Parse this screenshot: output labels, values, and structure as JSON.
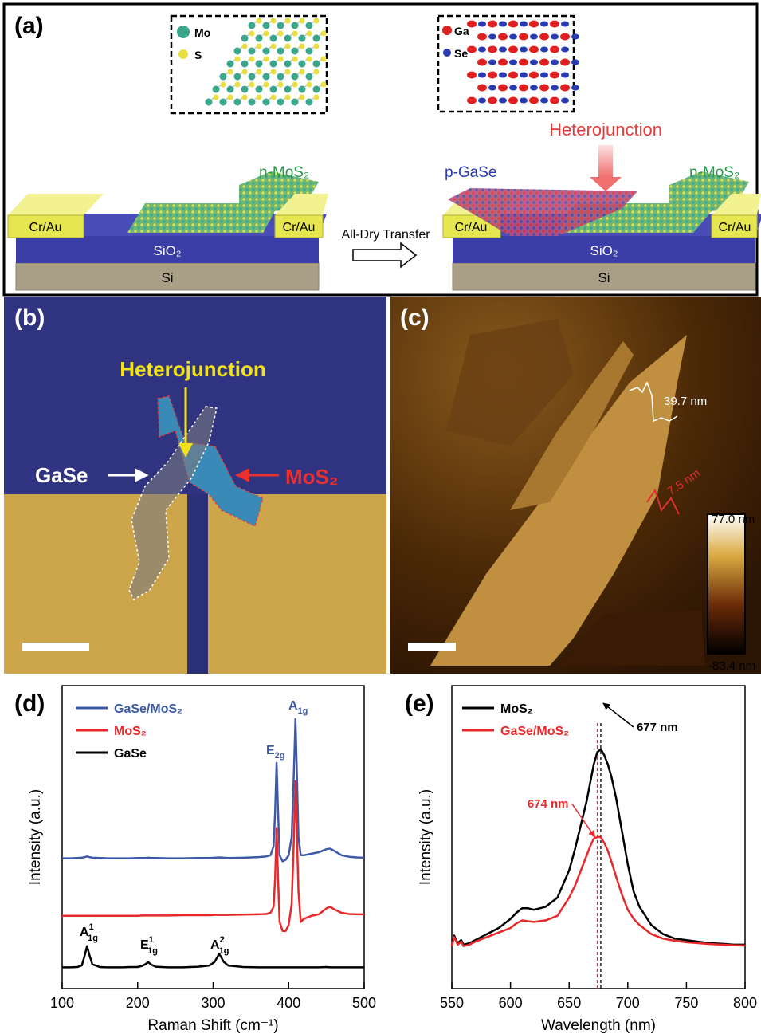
{
  "panel_a": {
    "label": "(a)",
    "inset_left": {
      "mo": "Mo",
      "s": "S"
    },
    "inset_right": {
      "ga": "Ga",
      "se": "Se"
    },
    "left_device": {
      "n_mos2": "n-MoS₂",
      "cr_au_left": "Cr/Au",
      "cr_au_right": "Cr/Au",
      "sio2": "SiO₂",
      "si": "Si"
    },
    "transfer": "All-Dry Transfer",
    "right_device": {
      "p_gase": "p-GaSe",
      "heterojunction": "Heterojunction",
      "n_mos2": "n-MoS₂",
      "cr_au_left": "Cr/Au",
      "cr_au_right": "Cr/Au",
      "sio2": "SiO₂",
      "si": "Si"
    }
  },
  "panel_b": {
    "label": "(b)",
    "heterojunction": "Heterojunction",
    "gase": "GaSe",
    "mos2": "MoS₂"
  },
  "panel_c": {
    "label": "(c)",
    "step_1": "39.7 nm",
    "step_2": "7.5 nm",
    "colorbar_max": "77.0 nm",
    "colorbar_min": "-83.4 nm"
  },
  "chart_data": [
    {
      "type": "line",
      "label": "(d)",
      "x_label": "Raman Shift (cm⁻¹)",
      "y_label": "Intensity (a.u.)",
      "xlim": [
        100,
        500
      ],
      "xticks": [
        100,
        200,
        300,
        400,
        500
      ],
      "ylim": [
        0,
        1
      ],
      "legend": "upper left",
      "x": [
        100,
        110,
        120,
        126,
        130,
        133,
        136,
        140,
        150,
        160,
        170,
        180,
        190,
        200,
        206,
        210,
        214,
        218,
        224,
        240,
        260,
        280,
        295,
        302,
        308,
        314,
        320,
        340,
        360,
        370,
        376,
        380,
        382,
        384,
        386,
        388,
        392,
        396,
        400,
        404,
        407,
        409,
        411,
        413,
        416,
        420,
        430,
        440,
        450,
        455,
        460,
        470,
        480,
        490,
        500
      ],
      "series": [
        {
          "name": "GaSe/MoS₂",
          "color": "#3d5aa8",
          "values": [
            0.43,
            0.43,
            0.431,
            0.432,
            0.434,
            0.436,
            0.434,
            0.432,
            0.431,
            0.43,
            0.43,
            0.43,
            0.43,
            0.431,
            0.431,
            0.431,
            0.432,
            0.431,
            0.431,
            0.43,
            0.43,
            0.431,
            0.431,
            0.432,
            0.433,
            0.432,
            0.431,
            0.432,
            0.434,
            0.436,
            0.44,
            0.47,
            0.58,
            0.745,
            0.58,
            0.44,
            0.42,
            0.425,
            0.44,
            0.5,
            0.72,
            0.89,
            0.7,
            0.5,
            0.44,
            0.44,
            0.445,
            0.45,
            0.46,
            0.462,
            0.455,
            0.44,
            0.435,
            0.433,
            0.432
          ]
        },
        {
          "name": "MoS₂",
          "color": "#e8282a",
          "values": [
            0.24,
            0.24,
            0.24,
            0.24,
            0.24,
            0.24,
            0.24,
            0.24,
            0.24,
            0.24,
            0.24,
            0.24,
            0.24,
            0.24,
            0.241,
            0.241,
            0.241,
            0.241,
            0.241,
            0.241,
            0.242,
            0.242,
            0.242,
            0.243,
            0.243,
            0.243,
            0.243,
            0.244,
            0.245,
            0.246,
            0.25,
            0.27,
            0.36,
            0.53,
            0.36,
            0.22,
            0.19,
            0.19,
            0.21,
            0.28,
            0.5,
            0.685,
            0.5,
            0.32,
            0.22,
            0.23,
            0.24,
            0.245,
            0.265,
            0.27,
            0.262,
            0.25,
            0.246,
            0.245,
            0.245
          ]
        },
        {
          "name": "GaSe",
          "color": "#000000",
          "values": [
            0.07,
            0.07,
            0.071,
            0.076,
            0.11,
            0.14,
            0.112,
            0.08,
            0.071,
            0.07,
            0.07,
            0.07,
            0.071,
            0.071,
            0.075,
            0.08,
            0.087,
            0.079,
            0.072,
            0.07,
            0.07,
            0.072,
            0.076,
            0.088,
            0.115,
            0.088,
            0.076,
            0.071,
            0.07,
            0.07,
            0.07,
            0.07,
            0.07,
            0.07,
            0.07,
            0.07,
            0.07,
            0.07,
            0.07,
            0.07,
            0.07,
            0.07,
            0.07,
            0.07,
            0.07,
            0.07,
            0.07,
            0.07,
            0.071,
            0.07,
            0.07,
            0.07,
            0.07,
            0.07,
            0.07
          ]
        }
      ],
      "peak_labels": [
        {
          "text": "E",
          "sub": "2g",
          "color": "#3d5aa8"
        },
        {
          "text": "A",
          "sub": "1g",
          "color": "#3d5aa8"
        },
        {
          "text": "A",
          "sub": "1g",
          "sup": "1"
        },
        {
          "text": "E",
          "sub": "1g",
          "sup": "1"
        },
        {
          "text": "A",
          "sub": "1g",
          "sup": "2"
        }
      ]
    },
    {
      "type": "line",
      "label": "(e)",
      "x_label": "Wavelength (nm)",
      "y_label": "Intensity (a.u.)",
      "xlim": [
        550,
        800
      ],
      "xticks": [
        550,
        600,
        650,
        700,
        750,
        800
      ],
      "ylim": [
        0,
        1
      ],
      "legend": "upper left",
      "x": [
        550,
        552,
        555,
        558,
        560,
        565,
        570,
        580,
        590,
        600,
        605,
        610,
        615,
        620,
        630,
        640,
        650,
        655,
        660,
        665,
        668,
        671,
        674,
        677,
        680,
        683,
        686,
        690,
        695,
        700,
        705,
        710,
        720,
        730,
        740,
        750,
        760,
        770,
        780,
        790,
        800
      ],
      "series": [
        {
          "name": "MoS₂",
          "color": "#000000",
          "values": [
            0.14,
            0.175,
            0.15,
            0.16,
            0.145,
            0.15,
            0.16,
            0.18,
            0.2,
            0.23,
            0.25,
            0.265,
            0.265,
            0.26,
            0.27,
            0.3,
            0.39,
            0.46,
            0.54,
            0.62,
            0.68,
            0.74,
            0.78,
            0.79,
            0.77,
            0.74,
            0.7,
            0.63,
            0.52,
            0.41,
            0.32,
            0.27,
            0.21,
            0.18,
            0.165,
            0.16,
            0.155,
            0.15,
            0.148,
            0.145,
            0.145
          ]
        },
        {
          "name": "GaSe/MoS₂",
          "color": "#e8282a",
          "values": [
            0.14,
            0.17,
            0.145,
            0.155,
            0.14,
            0.145,
            0.155,
            0.17,
            0.185,
            0.2,
            0.215,
            0.225,
            0.222,
            0.22,
            0.225,
            0.24,
            0.3,
            0.34,
            0.39,
            0.44,
            0.47,
            0.495,
            0.5,
            0.5,
            0.48,
            0.455,
            0.42,
            0.37,
            0.31,
            0.26,
            0.23,
            0.21,
            0.18,
            0.165,
            0.158,
            0.153,
            0.15,
            0.147,
            0.145,
            0.143,
            0.142
          ]
        }
      ],
      "markers": [
        {
          "x": 677,
          "label": "677 nm",
          "color": "#000000"
        },
        {
          "x": 674,
          "label": "674 nm",
          "color": "#e8282a"
        }
      ]
    }
  ]
}
